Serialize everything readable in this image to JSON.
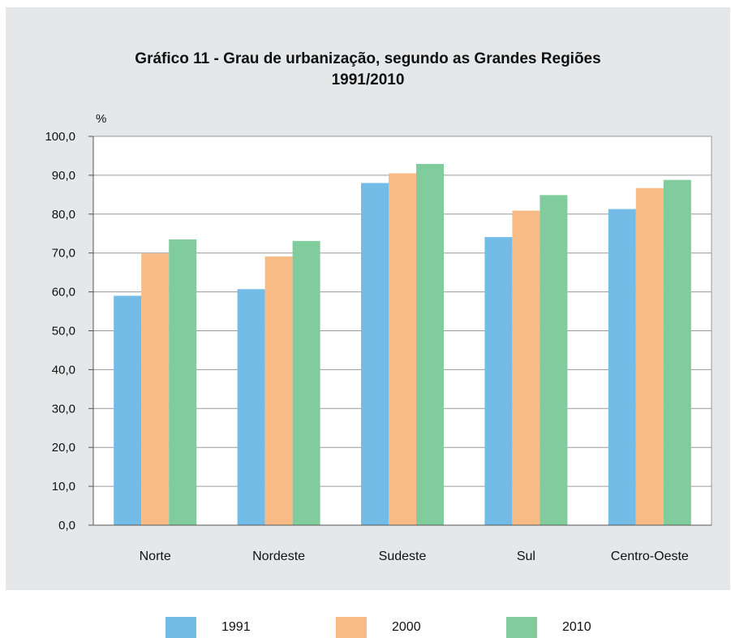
{
  "chart_data": {
    "type": "bar",
    "title_lines": [
      "Gráfico 11 - Grau de urbanização, segundo as Grandes Regiões",
      "1991/2010"
    ],
    "ylabel": "%",
    "ylim": [
      0,
      100
    ],
    "yticks": [
      "0,0",
      "10,0",
      "20,0",
      "30,0",
      "40,0",
      "50,0",
      "60,0",
      "70,0",
      "80,0",
      "90,0",
      "100,0"
    ],
    "categories": [
      "Norte",
      "Nordeste",
      "Sudeste",
      "Sul",
      "Centro-Oeste"
    ],
    "series": [
      {
        "name": "1991",
        "color": "#74bce8",
        "values": [
          59.0,
          60.7,
          88.0,
          74.1,
          81.3
        ]
      },
      {
        "name": "2000",
        "color": "#f8bb86",
        "values": [
          69.9,
          69.1,
          90.5,
          80.9,
          86.7
        ]
      },
      {
        "name": "2010",
        "color": "#80cc9d",
        "values": [
          73.5,
          73.1,
          92.9,
          84.9,
          88.8
        ]
      }
    ],
    "grid": true,
    "legend_position": "bottom"
  }
}
